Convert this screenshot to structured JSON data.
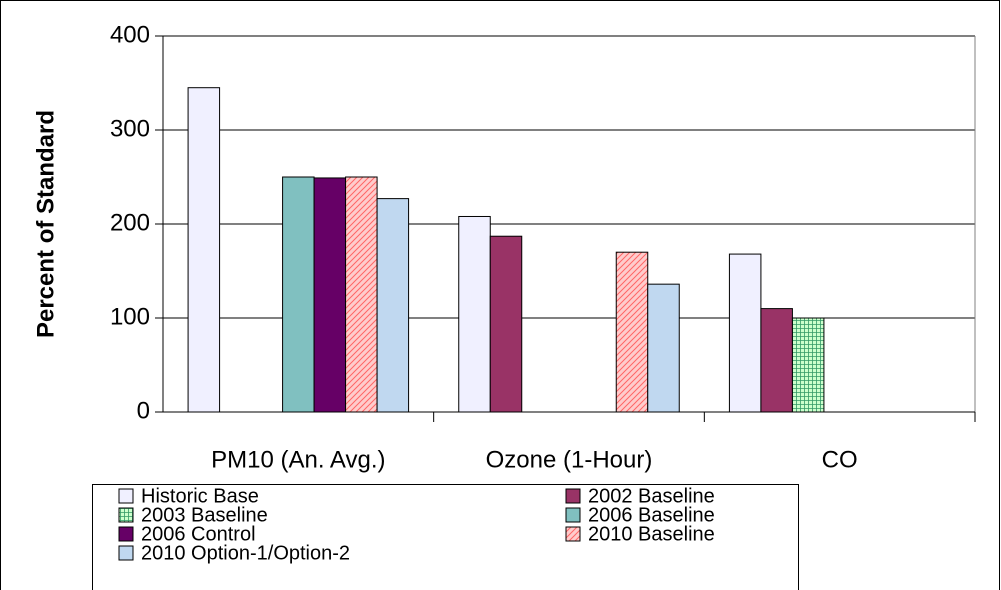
{
  "chart_data": {
    "type": "bar",
    "y_label": "Percent of Standard",
    "categories": [
      "PM10 (An. Avg.)",
      "Ozone (1-Hour)",
      "CO"
    ],
    "series": [
      {
        "name": "Historic Base",
        "color": "#f0f0ff",
        "values": [
          345,
          208,
          168
        ]
      },
      {
        "name": "2002 Baseline",
        "color": "#993366",
        "values": [
          null,
          187,
          110
        ]
      },
      {
        "name": "2003 Baseline",
        "color": "#ccffcc",
        "pattern": "grid",
        "values": [
          null,
          null,
          100
        ]
      },
      {
        "name": "2006 Baseline",
        "color": "#80c0c0",
        "values": [
          250,
          null,
          null
        ]
      },
      {
        "name": "2006 Control",
        "color": "#660066",
        "values": [
          249,
          null,
          null
        ]
      },
      {
        "name": "2010 Baseline",
        "color": "#ffcccc",
        "pattern": "diagonal",
        "values": [
          250,
          170,
          null
        ]
      },
      {
        "name": "2010 Option-1/Option-2",
        "color": "#c0d8f0",
        "values": [
          227,
          136,
          null
        ]
      }
    ],
    "ylim": [
      0,
      400
    ],
    "yticks": [
      0,
      100,
      200,
      300,
      400
    ],
    "grid": true
  }
}
